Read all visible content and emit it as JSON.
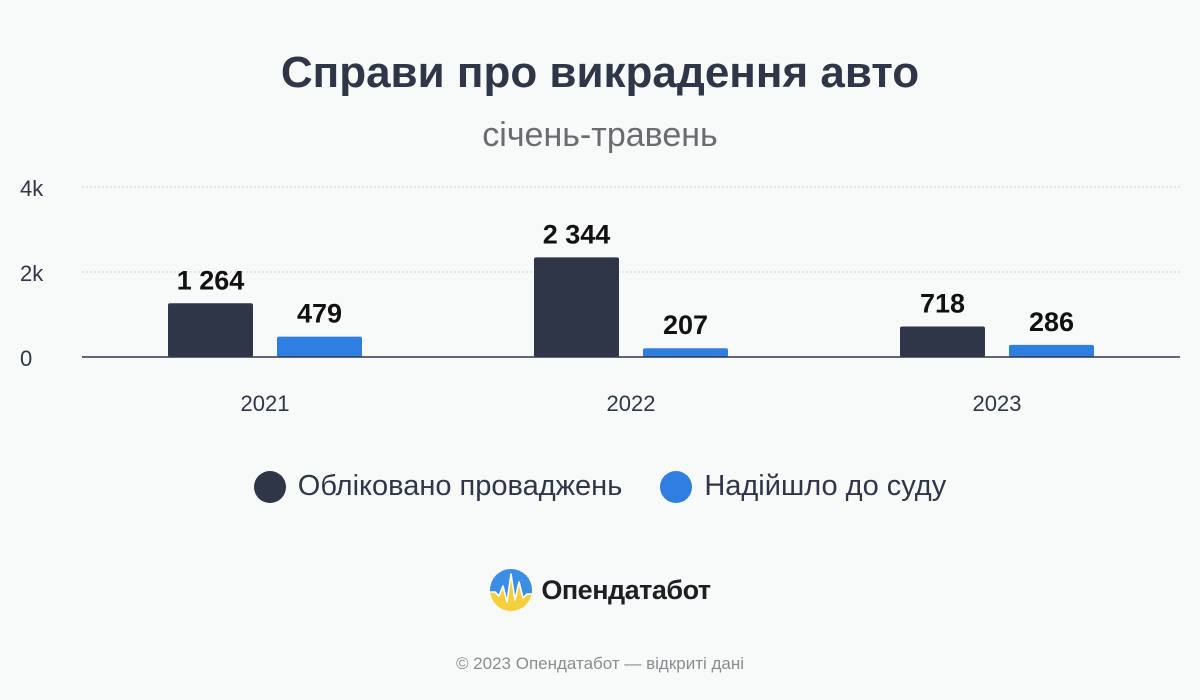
{
  "header": {
    "title": "Справи про викрадення авто",
    "subtitle": "січень-травень"
  },
  "chart_data": {
    "type": "bar",
    "title": "Справи про викрадення авто",
    "subtitle": "січень-травень",
    "categories": [
      "2021",
      "2022",
      "2023"
    ],
    "series": [
      {
        "name": "Обліковано проваджень",
        "values": [
          1264,
          2344,
          718
        ],
        "labels": [
          "1 264",
          "2 344",
          "718"
        ],
        "color": "#2e3648"
      },
      {
        "name": "Надійшло до суду",
        "values": [
          479,
          207,
          286
        ],
        "labels": [
          "479",
          "207",
          "286"
        ],
        "color": "#2f7fe0"
      }
    ],
    "yticks": [
      {
        "value": 0,
        "label": "0"
      },
      {
        "value": 2000,
        "label": "2k"
      },
      {
        "value": 4000,
        "label": "4k"
      }
    ],
    "ylim": [
      0,
      4000
    ],
    "grid": true,
    "legend": "bottom"
  },
  "legend": [
    {
      "label": "Обліковано проваджень",
      "color": "#2e3648"
    },
    {
      "label": "Надійшло до суду",
      "color": "#2f7fe0"
    }
  ],
  "brand": {
    "name": "Опендатабот",
    "logo_icon": "opendatabot-logo-icon"
  },
  "footer": {
    "copyright": "© 2023 Опендатабот — відкриті дані"
  }
}
